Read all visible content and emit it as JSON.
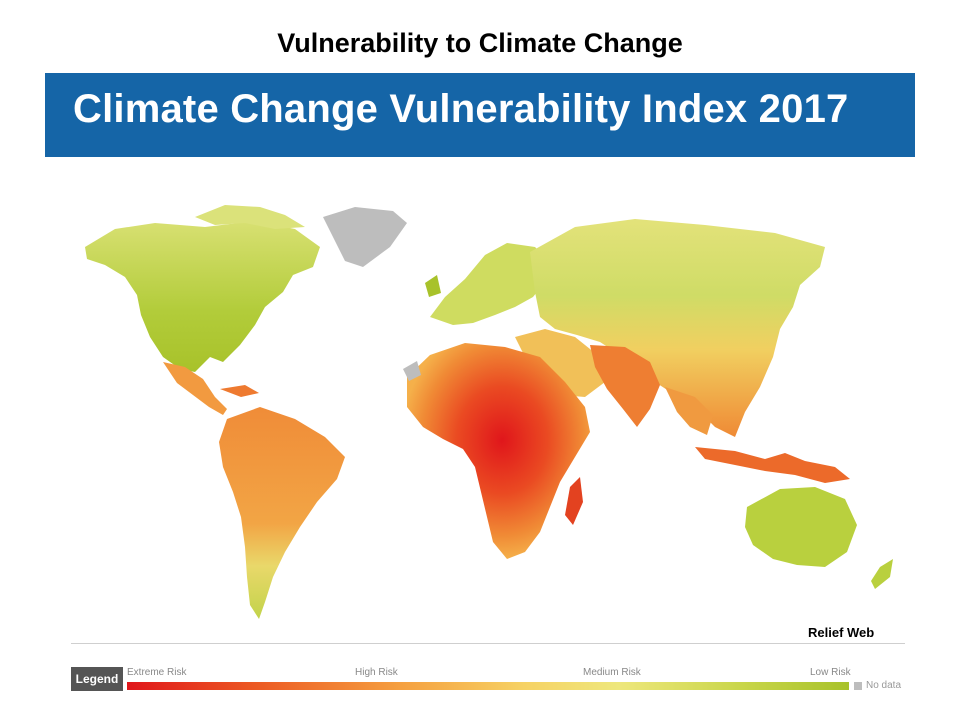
{
  "slide_title": "Vulnerability to Climate Change",
  "banner_title": "Climate Change Vulnerability Index 2017",
  "source_label": "Relief Web",
  "legend": {
    "heading": "Legend",
    "scale_labels": [
      "Extreme Risk",
      "High Risk",
      "Medium Risk",
      "Low Risk"
    ],
    "no_data_label": "No data"
  },
  "colors": {
    "banner": "#1565a7",
    "extreme_risk": "#e0161b",
    "high_risk": "#f5a040",
    "medium_risk": "#eee77c",
    "low_risk": "#a8c22a",
    "no_data": "#bdbdbd"
  },
  "map_regions": [
    {
      "name": "north-america",
      "risk": "low"
    },
    {
      "name": "greenland",
      "risk": "no-data"
    },
    {
      "name": "central-america",
      "risk": "high"
    },
    {
      "name": "south-america",
      "risk": "high"
    },
    {
      "name": "europe",
      "risk": "low"
    },
    {
      "name": "russia-north-asia",
      "risk": "low"
    },
    {
      "name": "north-africa",
      "risk": "high"
    },
    {
      "name": "central-africa",
      "risk": "extreme"
    },
    {
      "name": "south-asia",
      "risk": "high"
    },
    {
      "name": "southeast-asia",
      "risk": "high"
    },
    {
      "name": "australia",
      "risk": "low"
    }
  ]
}
